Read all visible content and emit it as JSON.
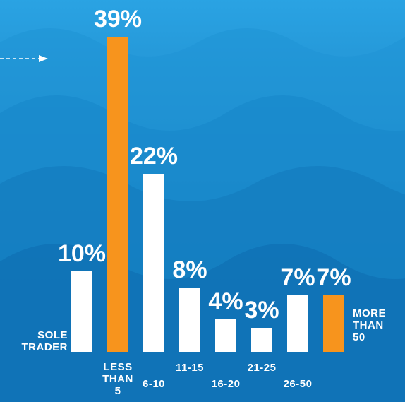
{
  "chart_data": {
    "type": "bar",
    "categories": [
      "SOLE TRADER",
      "LESS THAN 5",
      "6-10",
      "11-15",
      "16-20",
      "21-25",
      "26-50",
      "MORE THAN 50"
    ],
    "values": [
      10,
      39,
      22,
      8,
      4,
      3,
      7,
      7
    ],
    "value_labels": [
      "10%",
      "39%",
      "22%",
      "8%",
      "4%",
      "3%",
      "7%",
      "7%"
    ],
    "colors": [
      "#ffffff",
      "#f7941d",
      "#ffffff",
      "#ffffff",
      "#ffffff",
      "#ffffff",
      "#ffffff",
      "#f7941d"
    ]
  }
}
